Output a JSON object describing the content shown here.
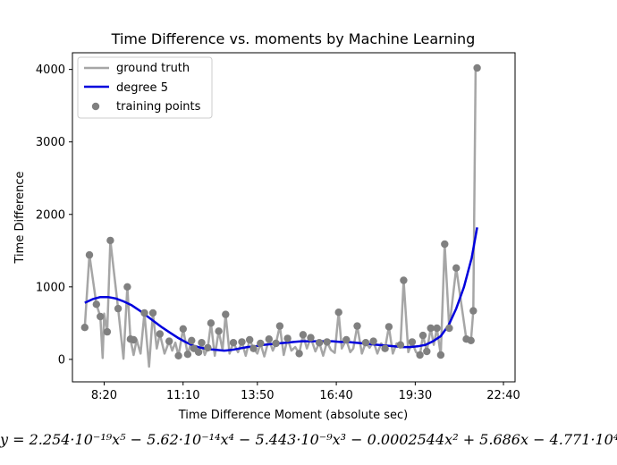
{
  "chart_data": {
    "type": "line",
    "title": "Time Difference vs. moments by Machine Learning",
    "xlabel": "Time Difference Moment (absolute sec)",
    "ylabel": "Time Difference",
    "x_ticks": [
      {
        "value": 30000,
        "label": "8:20"
      },
      {
        "value": 40200,
        "label": "11:10"
      },
      {
        "value": 49800,
        "label": "13:50"
      },
      {
        "value": 60000,
        "label": "16:40"
      },
      {
        "value": 70200,
        "label": "19:30"
      },
      {
        "value": 81600,
        "label": "22:40"
      }
    ],
    "y_ticks": [
      0,
      1000,
      2000,
      3000,
      4000
    ],
    "xlim": [
      25900,
      83100
    ],
    "ylim": [
      -310,
      4230
    ],
    "grid": false,
    "legend_position": "top-left",
    "series": [
      {
        "name": "ground truth",
        "kind": "line",
        "color": "#a6a6a6",
        "x": [
          27500,
          28100,
          29000,
          29500,
          29800,
          30000,
          30400,
          30800,
          31800,
          32500,
          33000,
          33400,
          33800,
          34200,
          34700,
          35200,
          35800,
          36300,
          36800,
          37200,
          37800,
          38400,
          38800,
          39200,
          39600,
          40200,
          40800,
          41300,
          41600,
          42200,
          42600,
          43000,
          43400,
          43800,
          44300,
          44800,
          45300,
          45700,
          46200,
          46700,
          47300,
          47800,
          48300,
          48800,
          49300,
          49800,
          50200,
          50700,
          51300,
          51800,
          52200,
          52700,
          53200,
          53700,
          54200,
          54700,
          55200,
          55700,
          56200,
          56700,
          57300,
          57800,
          58300,
          58800,
          59300,
          59800,
          60300,
          60700,
          61300,
          61800,
          62200,
          62700,
          63300,
          63800,
          64300,
          64800,
          65300,
          65800,
          66300,
          66800,
          67300,
          67800,
          68300,
          68700,
          69300,
          69800,
          70300,
          70800,
          71200,
          71700,
          72200,
          72600,
          73000,
          73500,
          74000,
          74600,
          75500,
          76800,
          77400,
          77700,
          78000,
          78200
        ],
        "y": [
          440,
          1440,
          760,
          590,
          20,
          630,
          380,
          1640,
          700,
          10,
          1000,
          280,
          60,
          270,
          80,
          640,
          -100,
          640,
          150,
          350,
          80,
          250,
          120,
          230,
          50,
          420,
          70,
          260,
          150,
          100,
          230,
          60,
          160,
          500,
          50,
          390,
          130,
          620,
          80,
          230,
          100,
          240,
          50,
          270,
          150,
          80,
          220,
          40,
          280,
          120,
          220,
          460,
          60,
          290,
          120,
          170,
          80,
          340,
          150,
          300,
          110,
          230,
          50,
          240,
          130,
          90,
          650,
          150,
          270,
          100,
          150,
          460,
          80,
          230,
          160,
          250,
          80,
          220,
          150,
          450,
          80,
          220,
          200,
          1090,
          100,
          240,
          100,
          60,
          330,
          110,
          430,
          200,
          430,
          60,
          1590,
          430,
          1260,
          280,
          260,
          670,
          4020,
          4020
        ]
      },
      {
        "name": "degree 5",
        "kind": "line",
        "color": "#0000dd",
        "x": [
          27500,
          28500,
          29500,
          30500,
          31500,
          32500,
          33500,
          34500,
          35500,
          36500,
          37500,
          38500,
          39500,
          40500,
          41500,
          42500,
          43500,
          44500,
          45500,
          46500,
          47500,
          48500,
          49500,
          50500,
          51500,
          52500,
          53500,
          54500,
          55500,
          56500,
          57500,
          58500,
          59500,
          60500,
          61500,
          62500,
          63500,
          64500,
          65500,
          66500,
          67500,
          68500,
          69500,
          70500,
          71500,
          72500,
          73500,
          74500,
          75500,
          76500,
          77500,
          78200
        ],
        "y": [
          780,
          830,
          860,
          860,
          840,
          800,
          750,
          680,
          600,
          520,
          440,
          370,
          300,
          240,
          190,
          160,
          140,
          130,
          120,
          130,
          150,
          170,
          180,
          200,
          210,
          220,
          230,
          240,
          250,
          250,
          250,
          250,
          250,
          240,
          240,
          230,
          220,
          210,
          200,
          190,
          180,
          170,
          170,
          180,
          200,
          250,
          320,
          470,
          700,
          1000,
          1400,
          1820
        ]
      },
      {
        "name": "training points",
        "kind": "scatter",
        "color": "#808080",
        "x": [
          27500,
          28100,
          29000,
          29500,
          30400,
          30800,
          31800,
          33000,
          33400,
          33800,
          35200,
          36300,
          37200,
          38400,
          39600,
          40200,
          40800,
          41300,
          41600,
          42200,
          42600,
          43400,
          43800,
          44800,
          45700,
          46700,
          47800,
          48800,
          49300,
          50200,
          51300,
          52200,
          52700,
          53700,
          55200,
          55700,
          56700,
          57800,
          58800,
          60300,
          61300,
          62700,
          63800,
          64800,
          66300,
          66800,
          68300,
          68700,
          69800,
          70800,
          71200,
          71700,
          72200,
          73000,
          73500,
          74000,
          74600,
          75500,
          76800,
          77400,
          77700,
          78200
        ],
        "y": [
          440,
          1440,
          760,
          590,
          380,
          1640,
          700,
          1000,
          280,
          270,
          640,
          640,
          350,
          250,
          50,
          420,
          70,
          260,
          150,
          100,
          230,
          160,
          500,
          390,
          620,
          230,
          240,
          270,
          150,
          220,
          280,
          220,
          460,
          290,
          80,
          340,
          300,
          230,
          240,
          650,
          270,
          460,
          230,
          250,
          150,
          450,
          200,
          1090,
          240,
          60,
          330,
          110,
          430,
          430,
          60,
          1590,
          430,
          1260,
          280,
          260,
          670,
          4020
        ]
      }
    ],
    "equation": "y = 2.254·10⁻¹⁹x⁵ − 5.62·10⁻¹⁴x⁴ − 5.443·10⁻⁹x³ − 0.0002544x² + 5.686x − 4.771·10⁴"
  }
}
